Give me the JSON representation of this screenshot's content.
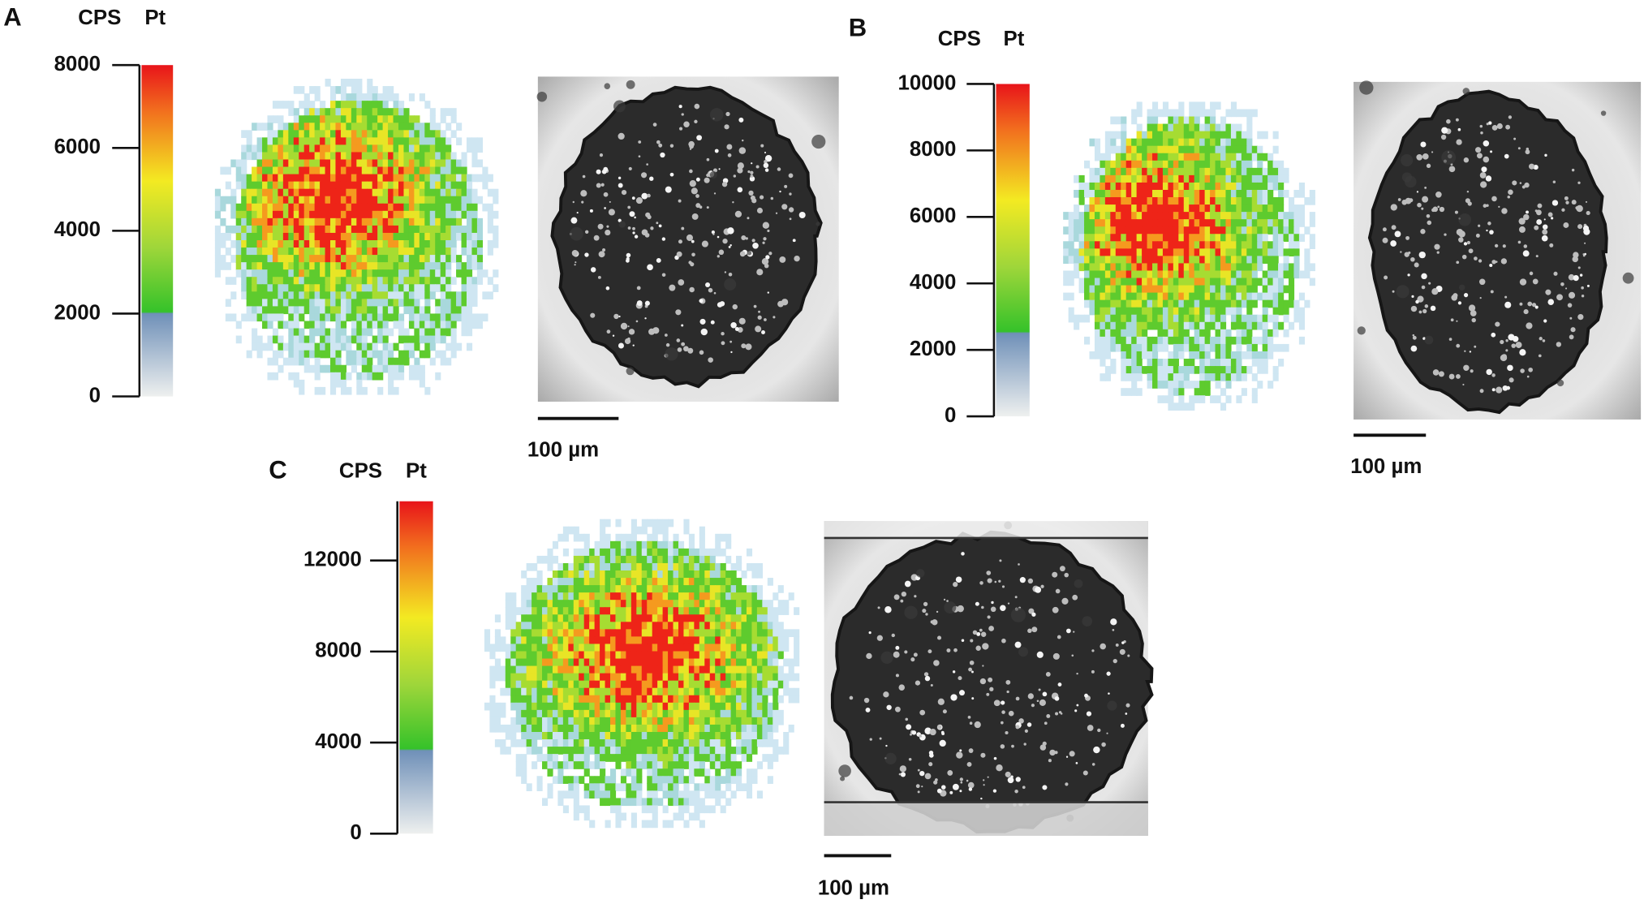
{
  "panels": [
    {
      "label": "A",
      "colorbar": {
        "unit": "CPS",
        "element": "Pt",
        "lim": [
          0,
          8000
        ],
        "ticks": [
          0,
          2000,
          4000,
          6000,
          8000
        ]
      },
      "scale_bar": "100 µm"
    },
    {
      "label": "B",
      "colorbar": {
        "unit": "CPS",
        "element": "Pt",
        "lim": [
          0,
          10000
        ],
        "ticks": [
          0,
          2000,
          4000,
          6000,
          8000,
          10000
        ]
      },
      "scale_bar": "100 µm"
    },
    {
      "label": "C",
      "colorbar": {
        "unit": "CPS",
        "element": "Pt",
        "lim": [
          0,
          14600
        ],
        "ticks": [
          0,
          4000,
          8000,
          12000
        ]
      },
      "scale_bar": "100 µm"
    }
  ]
}
